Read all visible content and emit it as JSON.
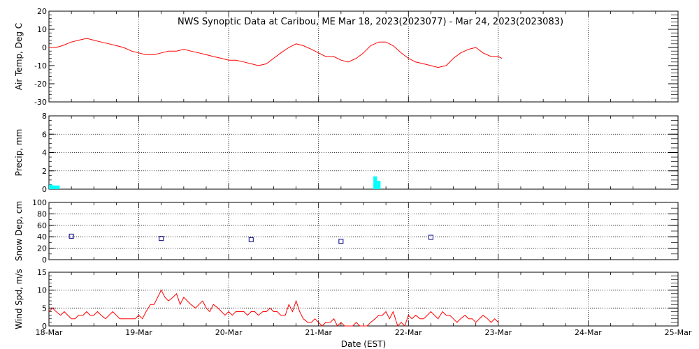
{
  "chart_data": {
    "title": "NWS Synoptic Data at Caribou, ME   Mar 18, 2023(2023077) - Mar 24, 2023(2023083)",
    "type": "line",
    "xlabel": "Date (EST)",
    "x_tick_labels": [
      "18-Mar",
      "19-Mar",
      "20-Mar",
      "21-Mar",
      "22-Mar",
      "23-Mar",
      "24-Mar",
      "25-Mar"
    ],
    "xlim_days": [
      0,
      7
    ],
    "colors": {
      "temp": "#ff0000",
      "precip": "#00ffff",
      "snow": "#000080",
      "wind": "#ff0000",
      "axes": "#000000"
    },
    "panels": [
      {
        "id": "temp",
        "type": "line",
        "ylabel": "Air Temp, Deg C",
        "ylim": [
          -30,
          20
        ],
        "y_ticks": [
          20,
          10,
          0,
          -10,
          -20,
          -30
        ],
        "x": [
          0,
          0.08,
          0.15,
          0.25,
          0.33,
          0.42,
          0.5,
          0.58,
          0.67,
          0.75,
          0.83,
          0.92,
          1.0,
          1.08,
          1.17,
          1.25,
          1.33,
          1.42,
          1.5,
          1.58,
          1.67,
          1.75,
          1.83,
          1.92,
          2.0,
          2.08,
          2.17,
          2.25,
          2.33,
          2.42,
          2.5,
          2.58,
          2.67,
          2.75,
          2.83,
          2.92,
          3.0,
          3.08,
          3.17,
          3.25,
          3.33,
          3.42,
          3.5,
          3.58,
          3.67,
          3.75,
          3.83,
          3.92,
          4.0,
          4.08,
          4.17,
          4.25,
          4.33,
          4.42,
          4.5,
          4.58,
          4.67,
          4.75,
          4.83,
          4.92,
          5.0,
          5.04
        ],
        "y": [
          0,
          0,
          1,
          3,
          4,
          5,
          4,
          3,
          2,
          1,
          0,
          -2,
          -3,
          -4,
          -4,
          -3,
          -2,
          -2,
          -1,
          -2,
          -3,
          -4,
          -5,
          -6,
          -7,
          -7,
          -8,
          -9,
          -10,
          -9,
          -6,
          -3,
          0,
          2,
          1,
          -1,
          -3,
          -5,
          -5,
          -7,
          -8,
          -6,
          -3,
          1,
          3,
          3,
          1,
          -3,
          -6,
          -8,
          -9,
          -10,
          -11,
          -10,
          -6,
          -3,
          -1,
          0,
          -3,
          -5,
          -5,
          -6
        ]
      },
      {
        "id": "precip",
        "type": "bar",
        "ylabel": "Precip, mm",
        "ylim": [
          0,
          8
        ],
        "y_ticks": [
          8,
          6,
          4,
          2,
          0
        ],
        "x": [
          0.02,
          0.06,
          0.1,
          3.63,
          3.67
        ],
        "values": [
          0.5,
          0.4,
          0.4,
          1.4,
          0.9
        ]
      },
      {
        "id": "snow",
        "type": "scatter",
        "ylabel": "Snow Dep, cm",
        "ylim": [
          0,
          100
        ],
        "y_ticks": [
          100,
          80,
          60,
          40,
          20,
          0
        ],
        "x": [
          0.25,
          1.25,
          2.25,
          3.25,
          4.25
        ],
        "y": [
          41,
          37,
          35,
          32,
          39
        ]
      },
      {
        "id": "wind",
        "type": "line",
        "ylabel": "Wind Spd, m/s",
        "ylim": [
          0,
          15
        ],
        "y_ticks": [
          15,
          10,
          5,
          0
        ],
        "x": [
          0,
          0.04,
          0.08,
          0.13,
          0.17,
          0.21,
          0.25,
          0.29,
          0.33,
          0.38,
          0.42,
          0.46,
          0.5,
          0.54,
          0.58,
          0.63,
          0.67,
          0.71,
          0.75,
          0.79,
          0.83,
          0.88,
          0.92,
          0.96,
          1.0,
          1.04,
          1.08,
          1.13,
          1.17,
          1.21,
          1.25,
          1.29,
          1.33,
          1.38,
          1.42,
          1.46,
          1.5,
          1.54,
          1.58,
          1.63,
          1.67,
          1.71,
          1.75,
          1.79,
          1.83,
          1.88,
          1.92,
          1.96,
          2.0,
          2.04,
          2.08,
          2.13,
          2.17,
          2.21,
          2.25,
          2.29,
          2.33,
          2.38,
          2.42,
          2.46,
          2.5,
          2.54,
          2.58,
          2.63,
          2.67,
          2.71,
          2.75,
          2.79,
          2.83,
          2.88,
          2.92,
          2.96,
          3.0,
          3.04,
          3.08,
          3.13,
          3.17,
          3.21,
          3.25,
          3.29,
          3.33,
          3.38,
          3.42,
          3.46,
          3.5,
          3.54,
          3.58,
          3.63,
          3.67,
          3.71,
          3.75,
          3.79,
          3.83,
          3.88,
          3.92,
          3.96,
          4.0,
          4.04,
          4.08,
          4.13,
          4.17,
          4.21,
          4.25,
          4.29,
          4.33,
          4.38,
          4.42,
          4.46,
          4.5,
          4.54,
          4.58,
          4.63,
          4.67,
          4.71,
          4.75,
          4.79,
          4.83,
          4.88,
          4.92,
          4.96,
          5.0
        ],
        "y": [
          4,
          5,
          4,
          3,
          4,
          3,
          2,
          2,
          3,
          3,
          4,
          3,
          3,
          4,
          3,
          2,
          3,
          4,
          3,
          2,
          2,
          2,
          2,
          2,
          3,
          2,
          4,
          6,
          6,
          8,
          10,
          8,
          7,
          8,
          9,
          6,
          8,
          7,
          6,
          5,
          6,
          7,
          5,
          4,
          6,
          5,
          4,
          3,
          4,
          3,
          4,
          4,
          4,
          3,
          4,
          4,
          3,
          4,
          4,
          5,
          4,
          4,
          3,
          3,
          6,
          4,
          7,
          4,
          2,
          1,
          1,
          2,
          1,
          0,
          1,
          1,
          2,
          0,
          1,
          0,
          0,
          0,
          1,
          0,
          0,
          0,
          1,
          2,
          3,
          3,
          4,
          2,
          4,
          0,
          1,
          0,
          3,
          2,
          3,
          2,
          2,
          3,
          4,
          3,
          2,
          4,
          3,
          3,
          2,
          1,
          2,
          3,
          2,
          2,
          1,
          2,
          3,
          2,
          1,
          2,
          1
        ]
      }
    ]
  }
}
